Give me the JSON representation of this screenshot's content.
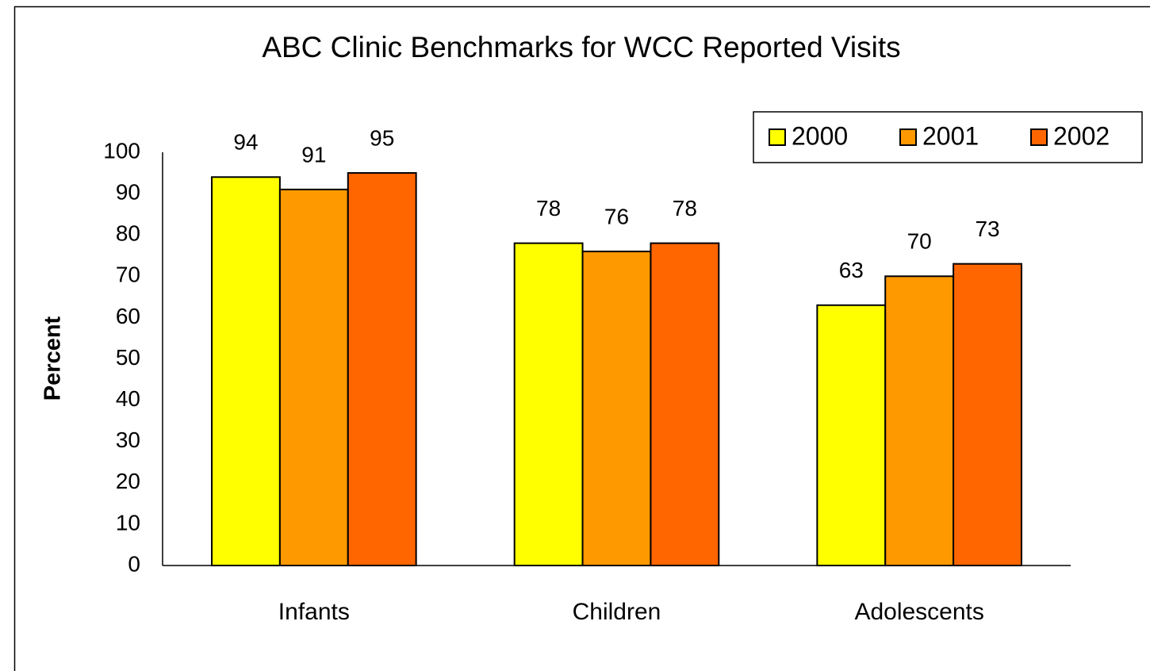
{
  "chart_data": {
    "type": "bar",
    "title": "ABC Clinic Benchmarks for WCC Reported Visits",
    "y_label": "Percent",
    "categories": [
      "Infants",
      "Children",
      "Adolescents"
    ],
    "series": [
      {
        "name": "2000",
        "color": "#ffff00",
        "values": [
          94,
          78,
          63
        ]
      },
      {
        "name": "2001",
        "color": "#ff9900",
        "values": [
          91,
          76,
          70
        ]
      },
      {
        "name": "2002",
        "color": "#ff6600",
        "values": [
          95,
          78,
          73
        ]
      }
    ],
    "ylim": [
      0,
      100
    ],
    "yticks": [
      0,
      10,
      20,
      30,
      40,
      50,
      60,
      70,
      80,
      90,
      100
    ],
    "grid": false,
    "legend": "top-right"
  }
}
